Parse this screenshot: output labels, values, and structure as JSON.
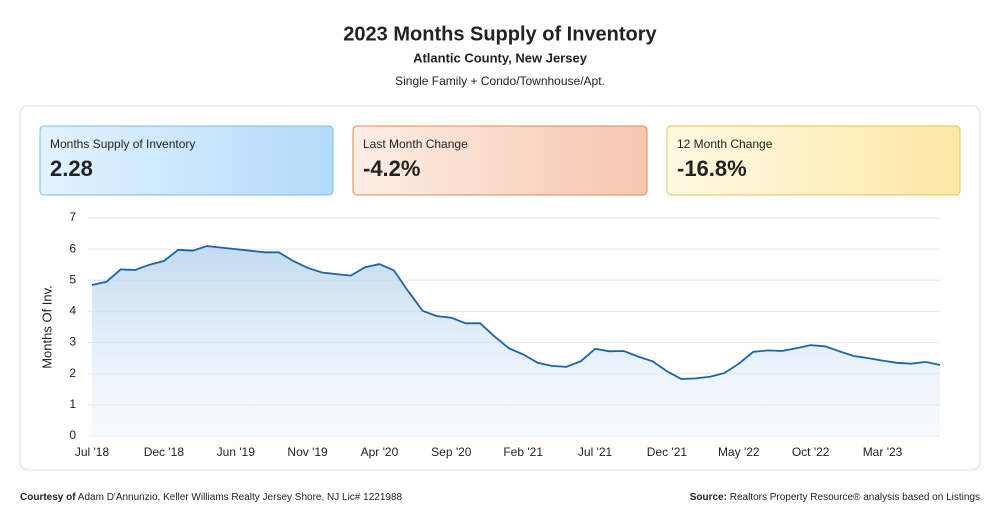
{
  "header": {
    "title": "2023 Months Supply of Inventory",
    "subtitle": "Atlantic County, New Jersey",
    "note": "Single Family + Condo/Townhouse/Apt."
  },
  "cards": [
    {
      "label": "Months Supply of Inventory",
      "value": "2.28"
    },
    {
      "label": "Last Month Change",
      "value": "-4.2%"
    },
    {
      "label": "12 Month Change",
      "value": "-16.8%"
    }
  ],
  "chart_data": {
    "type": "line",
    "y_label": "Months Of Inv.",
    "color": "#1a64a8",
    "grid": true,
    "categories": [
      "Jul '18",
      null,
      null,
      null,
      null,
      "Dec '18",
      null,
      null,
      null,
      null,
      "Jun '19",
      null,
      null,
      null,
      null,
      "Nov '19",
      null,
      null,
      null,
      null,
      "Apr '20",
      null,
      null,
      null,
      null,
      "Sep '20",
      null,
      null,
      null,
      null,
      "Feb '21",
      null,
      null,
      null,
      null,
      "Jul '21",
      null,
      null,
      null,
      null,
      "Dec '21",
      null,
      null,
      null,
      null,
      "May '22",
      null,
      null,
      null,
      null,
      "Oct '22",
      null,
      null,
      null,
      null,
      "Mar '23",
      null,
      null,
      null,
      null
    ],
    "values": [
      4.85,
      4.95,
      5.35,
      5.33,
      5.5,
      5.62,
      5.98,
      5.95,
      6.1,
      6.05,
      6.0,
      5.95,
      5.9,
      5.9,
      5.62,
      5.4,
      5.25,
      5.2,
      5.15,
      5.42,
      5.52,
      5.32,
      4.65,
      4.02,
      3.85,
      3.8,
      3.62,
      3.62,
      3.2,
      2.82,
      2.62,
      2.35,
      2.25,
      2.22,
      2.4,
      2.8,
      2.72,
      2.73,
      2.55,
      2.4,
      2.08,
      1.83,
      1.85,
      1.9,
      2.02,
      2.32,
      2.7,
      2.75,
      2.73,
      2.82,
      2.92,
      2.88,
      2.72,
      2.57,
      2.5,
      2.42,
      2.35,
      2.32,
      2.38,
      2.28
    ],
    "ylim": [
      0,
      7
    ],
    "yticks": [
      0,
      1,
      2,
      3,
      4,
      5,
      6,
      7
    ]
  },
  "footer": {
    "courtesy_label": "Courtesy of",
    "courtesy": "Adam D'Annunzio, Keller Williams Realty Jersey Shore, NJ Lic# 1221988",
    "source_label": "Source:",
    "source": "Realtors Property Resource® analysis based on Listings"
  }
}
